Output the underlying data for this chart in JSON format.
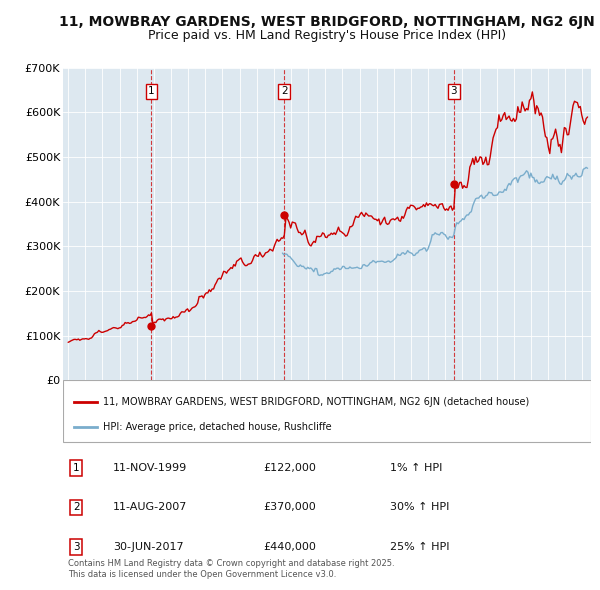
{
  "title": "11, MOWBRAY GARDENS, WEST BRIDGFORD, NOTTINGHAM, NG2 6JN",
  "subtitle": "Price paid vs. HM Land Registry's House Price Index (HPI)",
  "background_color": "#ffffff",
  "plot_bg_color": "#dde8f0",
  "ylim": [
    0,
    700000
  ],
  "yticks": [
    0,
    100000,
    200000,
    300000,
    400000,
    500000,
    600000,
    700000
  ],
  "ytick_labels": [
    "£0",
    "£100K",
    "£200K",
    "£300K",
    "£400K",
    "£500K",
    "£600K",
    "£700K"
  ],
  "xlim_start": 1994.7,
  "xlim_end": 2025.5,
  "red_line_color": "#cc0000",
  "blue_line_color": "#7aadcc",
  "sale_dates": [
    1999.86,
    2007.61,
    2017.5
  ],
  "sale_prices": [
    122000,
    370000,
    440000
  ],
  "sale_labels": [
    "1",
    "2",
    "3"
  ],
  "vline_color": "#cc0000",
  "legend_label_red": "11, MOWBRAY GARDENS, WEST BRIDGFORD, NOTTINGHAM, NG2 6JN (detached house)",
  "legend_label_blue": "HPI: Average price, detached house, Rushcliffe",
  "table_rows": [
    {
      "num": "1",
      "date": "11-NOV-1999",
      "price": "£122,000",
      "hpi": "1% ↑ HPI"
    },
    {
      "num": "2",
      "date": "11-AUG-2007",
      "price": "£370,000",
      "hpi": "30% ↑ HPI"
    },
    {
      "num": "3",
      "date": "30-JUN-2017",
      "price": "£440,000",
      "hpi": "25% ↑ HPI"
    }
  ],
  "footer": "Contains HM Land Registry data © Crown copyright and database right 2025.\nThis data is licensed under the Open Government Licence v3.0.",
  "title_fontsize": 10,
  "subtitle_fontsize": 9,
  "axis_fontsize": 8
}
